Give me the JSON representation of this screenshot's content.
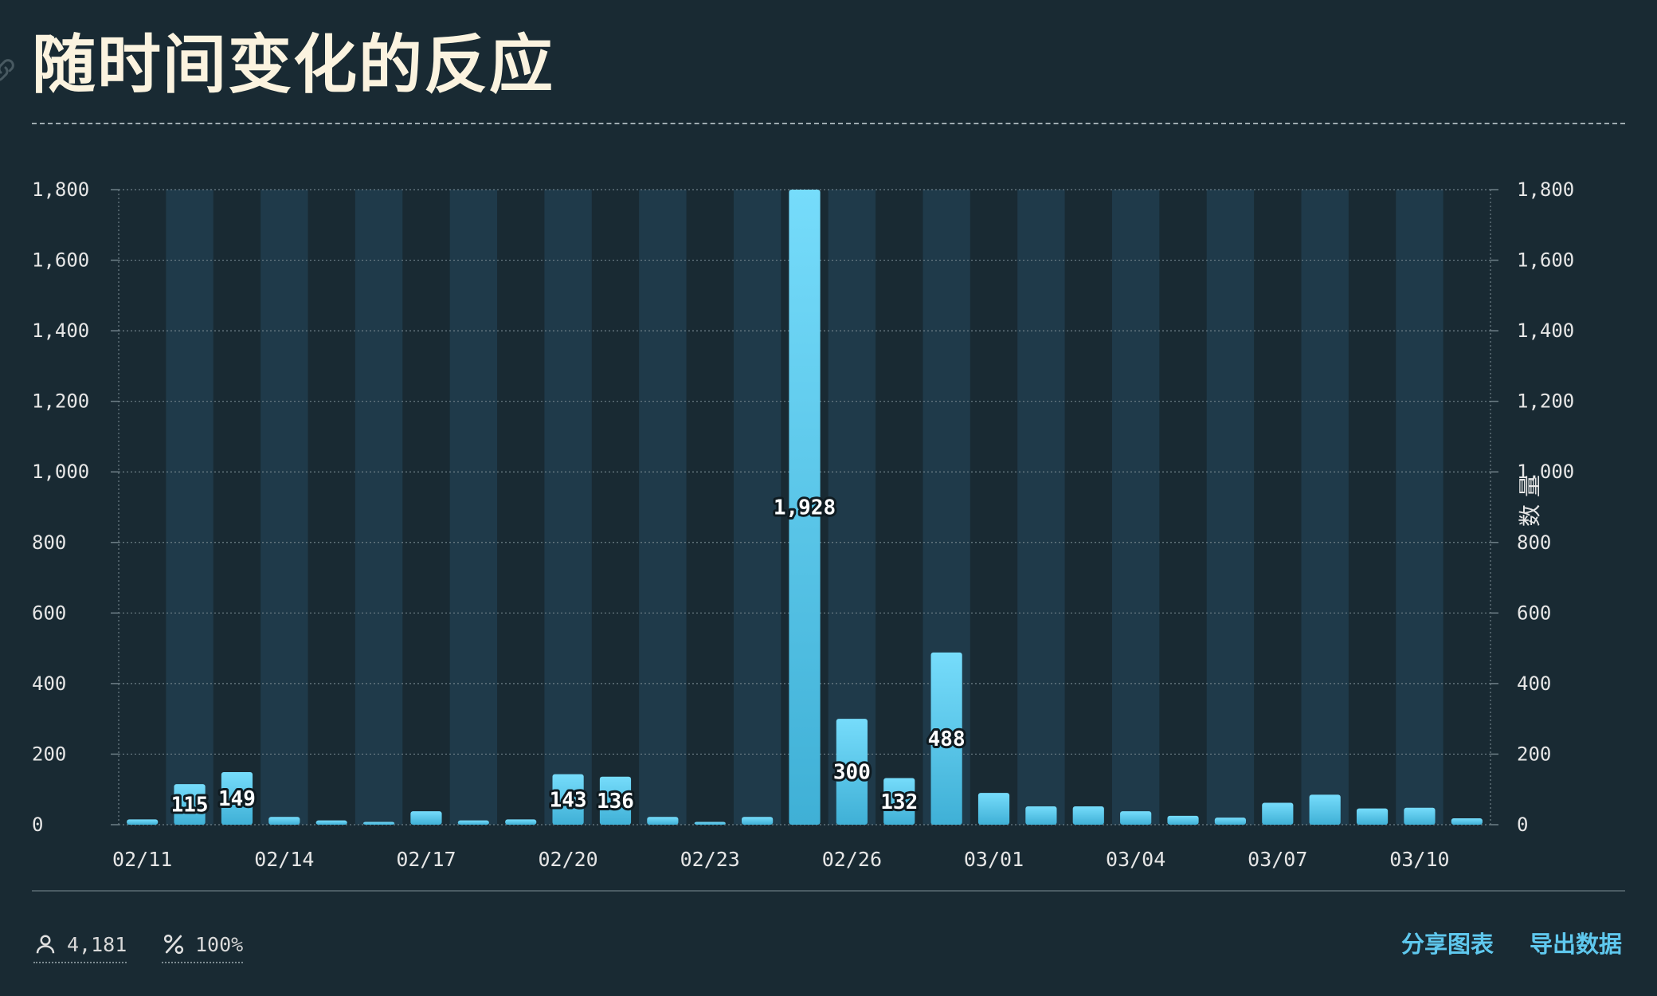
{
  "header": {
    "title": "随时间变化的反应"
  },
  "chart_data": {
    "type": "bar",
    "title": "随时间变化的反应",
    "ylabel_right": "数 量",
    "ylim": [
      0,
      1800
    ],
    "yticks": [
      0,
      200,
      400,
      600,
      800,
      1000,
      1200,
      1400,
      1600,
      1800
    ],
    "ytick_labels": [
      "0",
      "200",
      "400",
      "600",
      "800",
      "1,000",
      "1,200",
      "1,400",
      "1,600",
      "1,800"
    ],
    "categories": [
      "02/11",
      "02/12",
      "02/13",
      "02/14",
      "02/15",
      "02/16",
      "02/17",
      "02/18",
      "02/19",
      "02/20",
      "02/21",
      "02/22",
      "02/23",
      "02/24",
      "02/25",
      "02/26",
      "02/27",
      "02/28",
      "03/01",
      "03/02",
      "03/03",
      "03/04",
      "03/05",
      "03/06",
      "03/07",
      "03/08",
      "03/09",
      "03/10",
      "03/11"
    ],
    "values": [
      15,
      115,
      149,
      22,
      12,
      8,
      38,
      12,
      15,
      143,
      136,
      22,
      8,
      22,
      1928,
      300,
      132,
      488,
      90,
      52,
      52,
      38,
      25,
      20,
      62,
      85,
      46,
      48,
      18
    ],
    "value_labels": [
      "",
      "115",
      "149",
      "",
      "",
      "",
      "",
      "",
      "",
      "143",
      "136",
      "",
      "",
      "",
      "1,928",
      "300",
      "132",
      "488",
      "",
      "",
      "",
      "",
      "",
      "",
      "",
      "",
      "",
      "",
      ""
    ],
    "xtick_labels": [
      "02/11",
      "",
      "",
      "02/14",
      "",
      "",
      "02/17",
      "",
      "",
      "02/20",
      "",
      "",
      "02/23",
      "",
      "",
      "02/26",
      "",
      "",
      "03/01",
      "",
      "",
      "03/04",
      "",
      "",
      "03/07",
      "",
      "",
      "03/10",
      ""
    ],
    "colors": {
      "bar_top": "#76dcfb",
      "bar_bottom": "#3fb0d6",
      "band": "#1f3a4a",
      "background": "#192a33",
      "grid": "#6e7f87"
    },
    "grid": true,
    "legend": "none"
  },
  "footer": {
    "users_icon": "user-icon",
    "users_count": "4,181",
    "percent_icon": "percent-icon",
    "percent_value": "100%",
    "share_label": "分享图表",
    "export_label": "导出数据"
  }
}
